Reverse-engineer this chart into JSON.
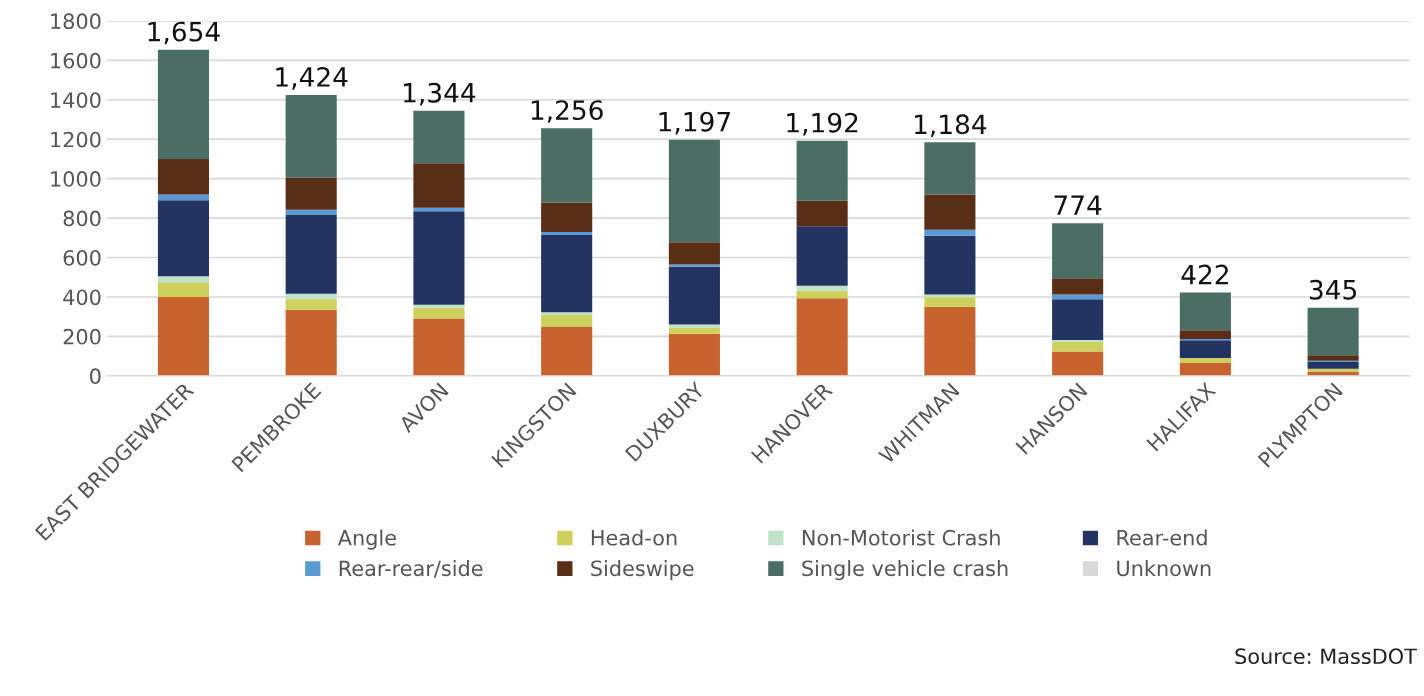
{
  "chart_data": {
    "type": "bar",
    "stacked": true,
    "categories": [
      "EAST BRIDGEWATER",
      "PEMBROKE",
      "AVON",
      "KINGSTON",
      "DUXBURY",
      "HANOVER",
      "WHITMAN",
      "HANSON",
      "HALIFAX",
      "PLYMPTON"
    ],
    "series": [
      {
        "name": "Angle",
        "color": "#c8622f",
        "values": [
          400,
          335,
          291,
          250,
          213,
          393,
          350,
          124,
          65,
          19
        ]
      },
      {
        "name": "Head-on",
        "color": "#cdd05a",
        "values": [
          75,
          54,
          54,
          58,
          30,
          39,
          48,
          48,
          25,
          17
        ]
      },
      {
        "name": "Non-Motorist Crash",
        "color": "#bfe3c8",
        "values": [
          30,
          27,
          15,
          15,
          17,
          25,
          14,
          10,
          null,
          null
        ]
      },
      {
        "name": "Rear-end",
        "color": "#233462",
        "values": [
          385,
          399,
          475,
          391,
          293,
          302,
          299,
          207,
          90,
          34
        ]
      },
      {
        "name": "Rear-rear/side",
        "color": "#5b9bd5",
        "values": [
          30,
          27,
          17,
          16,
          12,
          null,
          30,
          23,
          7,
          7
        ]
      },
      {
        "name": "Sideswipe",
        "color": "#5a2d17",
        "values": [
          180,
          162,
          226,
          149,
          112,
          129,
          179,
          83,
          44,
          27
        ]
      },
      {
        "name": "Single vehicle crash",
        "color": "#4a6e64",
        "values": [
          554,
          420,
          266,
          377,
          520,
          304,
          264,
          279,
          191,
          241
        ]
      },
      {
        "name": "Unknown",
        "color": "#d9d9d9",
        "values": [
          0,
          0,
          0,
          0,
          0,
          0,
          0,
          0,
          0,
          0
        ]
      }
    ],
    "totals": [
      "1,654",
      "1,424",
      "1,344",
      "1,256",
      "1,197",
      "1,192",
      "1,184",
      "774",
      "422",
      "345"
    ],
    "ylim": [
      0,
      1800
    ],
    "yticks": [
      0,
      200,
      400,
      600,
      800,
      1000,
      1200,
      1400,
      1600,
      1800
    ],
    "grid": "y",
    "legend": "bottom",
    "annotations": [
      "Source: MassDOT"
    ]
  }
}
